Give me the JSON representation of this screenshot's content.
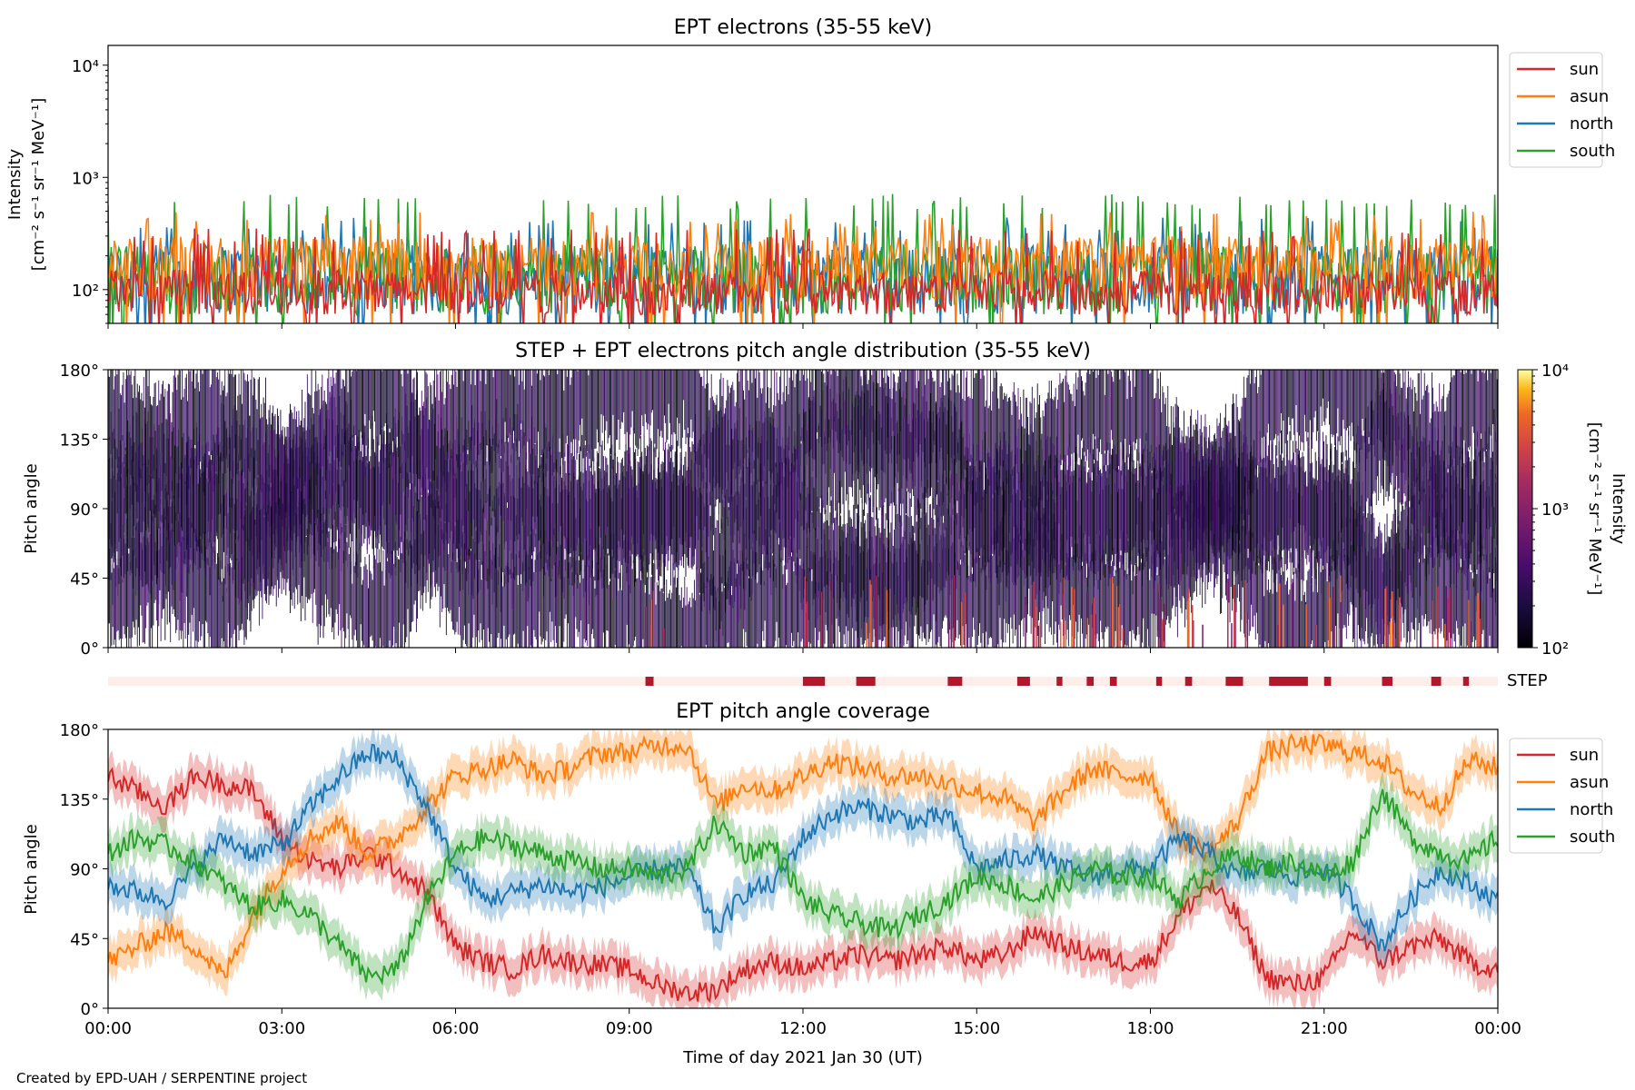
{
  "footer_credit": "Created by EPD-UAH / SERPENTINE project",
  "colors": {
    "sun": "#d62728",
    "asun": "#ff7f0e",
    "north": "#1f77b4",
    "south": "#2ca02c",
    "step_on": "#b2182b",
    "step_off": "#fdeee9"
  },
  "chart_data": [
    {
      "type": "line",
      "title": "EPT electrons (35-55 keV)",
      "ylabel": "Intensity",
      "ylabel_units": "[cm⁻² s⁻¹ sr⁻¹ MeV⁻¹]",
      "yscale": "log",
      "ylim": [
        50,
        15000
      ],
      "ytick_labels": [
        "10²",
        "10³",
        "10⁴"
      ],
      "ytick_values": [
        100,
        1000,
        10000
      ],
      "legend_position": "right outside, top",
      "series": [
        {
          "name": "sun",
          "baseline": [
            60,
            150
          ],
          "spikes_to": 320
        },
        {
          "name": "asun",
          "baseline": [
            80,
            300
          ],
          "spikes_to": 450
        },
        {
          "name": "north",
          "baseline": [
            60,
            250
          ],
          "spikes_to": 400
        },
        {
          "name": "south",
          "baseline": [
            60,
            250
          ],
          "spikes_to": 650
        }
      ]
    },
    {
      "type": "heatmap",
      "title": "STEP + EPT electrons pitch angle distribution (35-55 keV)",
      "ylabel": "Pitch angle",
      "ylim": [
        0,
        180
      ],
      "ytick_labels": [
        "0°",
        "45°",
        "90°",
        "135°",
        "180°"
      ],
      "colorbar": {
        "label": "Intensity",
        "units": "[cm⁻² s⁻¹ sr⁻¹ MeV⁻¹]",
        "scale": "log",
        "range": [
          100,
          10000
        ],
        "tick_labels": [
          "10²",
          "10³",
          "10⁴"
        ],
        "colormap": "inferno"
      }
    },
    {
      "type": "heatmap",
      "title": "",
      "label": "STEP",
      "on_intervals_hours": [
        [
          9.28,
          9.42
        ],
        [
          12.0,
          12.38
        ],
        [
          12.92,
          13.25
        ],
        [
          14.5,
          14.75
        ],
        [
          15.7,
          15.92
        ],
        [
          16.38,
          16.48
        ],
        [
          16.9,
          17.02
        ],
        [
          17.3,
          17.42
        ],
        [
          18.1,
          18.2
        ],
        [
          18.6,
          18.72
        ],
        [
          19.3,
          19.6
        ],
        [
          20.05,
          20.72
        ],
        [
          21.0,
          21.12
        ],
        [
          22.0,
          22.18
        ],
        [
          22.85,
          23.02
        ],
        [
          23.4,
          23.5
        ]
      ]
    },
    {
      "type": "line",
      "title": "EPT pitch angle coverage",
      "ylabel": "Pitch angle",
      "xlabel": "Time of day 2021 Jan 30 (UT)",
      "ylim": [
        0,
        180
      ],
      "ytick_labels": [
        "0°",
        "45°",
        "90°",
        "135°",
        "180°"
      ],
      "xlim_hours": [
        0,
        24
      ],
      "xtick_labels": [
        "00:00",
        "03:00",
        "06:00",
        "09:00",
        "12:00",
        "15:00",
        "18:00",
        "21:00",
        "00:00"
      ],
      "legend_position": "right outside, top",
      "series": [
        {
          "name": "sun",
          "x": [
            0,
            0.5,
            1,
            1.5,
            2,
            2.5,
            3,
            3.5,
            4,
            4.5,
            5,
            5.5,
            6,
            6.5,
            7,
            7.5,
            8,
            8.5,
            9,
            9.5,
            10,
            10.5,
            11,
            11.5,
            12,
            12.5,
            13,
            13.5,
            14,
            14.5,
            15,
            15.5,
            16,
            16.5,
            17,
            17.5,
            18,
            18.5,
            19,
            19.5,
            20,
            20.5,
            21,
            21.5,
            22,
            22.5,
            23,
            23.5,
            24
          ],
          "y": [
            150,
            140,
            130,
            150,
            145,
            140,
            110,
            95,
            90,
            100,
            90,
            75,
            40,
            30,
            25,
            35,
            30,
            28,
            25,
            15,
            10,
            12,
            25,
            30,
            25,
            30,
            35,
            30,
            35,
            40,
            30,
            35,
            50,
            40,
            35,
            30,
            30,
            60,
            80,
            60,
            20,
            15,
            20,
            50,
            30,
            40,
            45,
            30,
            25
          ]
        },
        {
          "name": "asun",
          "x": [
            0,
            0.5,
            1,
            1.5,
            2,
            2.5,
            3,
            3.5,
            4,
            4.5,
            5,
            5.5,
            6,
            6.5,
            7,
            7.5,
            8,
            8.5,
            9,
            9.5,
            10,
            10.5,
            11,
            11.5,
            12,
            12.5,
            13,
            13.5,
            14,
            14.5,
            15,
            15.5,
            16,
            16.5,
            17,
            17.5,
            18,
            18.5,
            19,
            19.5,
            20,
            20.5,
            21,
            21.5,
            22,
            22.5,
            23,
            23.5,
            24
          ],
          "y": [
            30,
            40,
            50,
            40,
            20,
            60,
            90,
            110,
            120,
            100,
            110,
            130,
            150,
            155,
            160,
            150,
            155,
            165,
            165,
            170,
            170,
            130,
            145,
            140,
            150,
            160,
            155,
            150,
            150,
            145,
            140,
            135,
            120,
            140,
            155,
            150,
            150,
            110,
            100,
            120,
            165,
            170,
            170,
            165,
            160,
            140,
            130,
            160,
            155
          ]
        },
        {
          "name": "north",
          "x": [
            0,
            0.5,
            1,
            1.5,
            2,
            2.5,
            3,
            3.5,
            4,
            4.5,
            5,
            5.5,
            6,
            6.5,
            7,
            7.5,
            8,
            8.5,
            9,
            9.5,
            10,
            10.5,
            11,
            11.5,
            12,
            12.5,
            13,
            13.5,
            14,
            14.5,
            15,
            15.5,
            16,
            16.5,
            17,
            17.5,
            18,
            18.5,
            19,
            19.5,
            20,
            20.5,
            21,
            21.5,
            22,
            22.5,
            23,
            23.5,
            24
          ],
          "y": [
            80,
            75,
            70,
            90,
            110,
            100,
            105,
            130,
            150,
            165,
            160,
            130,
            90,
            70,
            75,
            80,
            75,
            78,
            85,
            90,
            90,
            50,
            75,
            80,
            110,
            125,
            130,
            125,
            120,
            125,
            90,
            95,
            100,
            90,
            85,
            90,
            90,
            110,
            100,
            85,
            90,
            85,
            90,
            70,
            40,
            70,
            90,
            80,
            70
          ]
        },
        {
          "name": "south",
          "x": [
            0,
            0.5,
            1,
            1.5,
            2,
            2.5,
            3,
            3.5,
            4,
            4.5,
            5,
            5.5,
            6,
            6.5,
            7,
            7.5,
            8,
            8.5,
            9,
            9.5,
            10,
            10.5,
            11,
            11.5,
            12,
            12.5,
            13,
            13.5,
            14,
            14.5,
            15,
            15.5,
            16,
            16.5,
            17,
            17.5,
            18,
            18.5,
            19,
            19.5,
            20,
            20.5,
            21,
            21.5,
            22,
            22.5,
            23,
            23.5,
            24
          ],
          "y": [
            100,
            110,
            105,
            95,
            80,
            65,
            70,
            60,
            40,
            20,
            25,
            70,
            100,
            110,
            105,
            100,
            95,
            90,
            90,
            85,
            90,
            120,
            100,
            105,
            70,
            60,
            55,
            50,
            60,
            70,
            85,
            80,
            70,
            80,
            90,
            85,
            85,
            70,
            90,
            100,
            90,
            95,
            85,
            95,
            140,
            110,
            100,
            95,
            110
          ]
        }
      ]
    }
  ]
}
